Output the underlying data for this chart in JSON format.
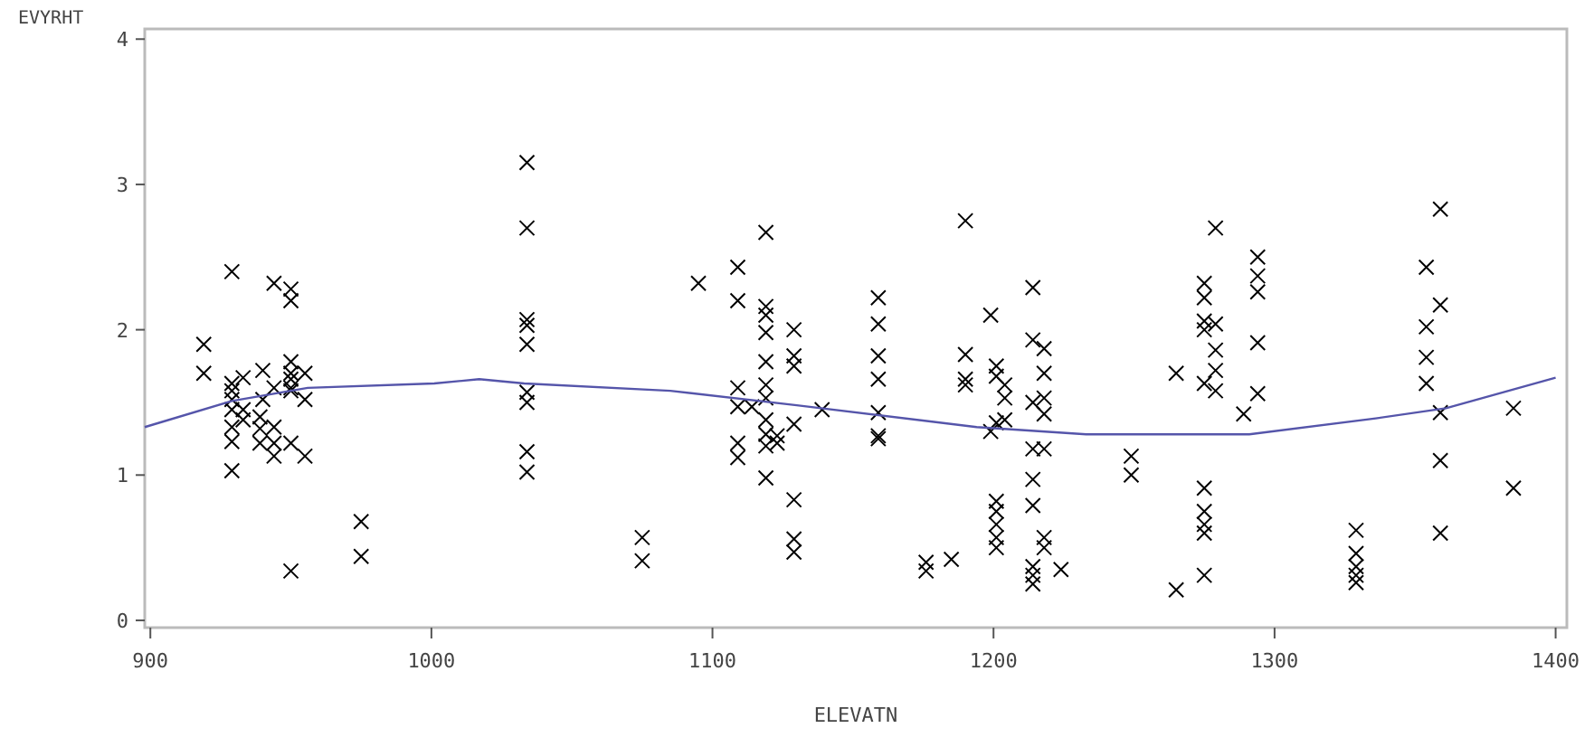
{
  "chart_data": {
    "type": "scatter",
    "xlabel": "ELEVATN",
    "ylabel": "EVYRHT",
    "xlim": [
      898,
      1404
    ],
    "ylim": [
      -0.05,
      4.07
    ],
    "xticks": [
      900,
      1000,
      1100,
      1200,
      1300,
      1400
    ],
    "yticks": [
      0,
      1,
      2,
      3,
      4
    ],
    "marker": "cross",
    "grid": false,
    "series": [
      {
        "color": "#000000",
        "x": [
          919,
          919,
          929,
          929,
          929,
          929,
          929,
          929,
          929,
          929,
          933,
          933,
          933,
          939,
          939,
          939,
          944,
          944,
          944,
          944,
          944,
          950,
          950,
          950,
          950,
          950,
          950,
          950,
          950,
          950,
          955,
          955,
          955,
          940,
          940,
          975,
          975,
          1034,
          1034,
          1034,
          1034,
          1034,
          1034,
          1034,
          1034,
          1034,
          1075,
          1075,
          1095,
          1109,
          1109,
          1109,
          1109,
          1109,
          1109,
          1114,
          1119,
          1119,
          1119,
          1119,
          1119,
          1119,
          1119,
          1119,
          1119,
          1119,
          1119,
          1123,
          1123,
          1129,
          1129,
          1129,
          1129,
          1129,
          1129,
          1129,
          1139,
          1159,
          1159,
          1159,
          1159,
          1159,
          1159,
          1159,
          1176,
          1176,
          1185,
          1190,
          1190,
          1190,
          1190,
          1199,
          1199,
          1201,
          1201,
          1201,
          1204,
          1204,
          1204,
          1201,
          1201,
          1201,
          1201,
          1201,
          1214,
          1214,
          1214,
          1214,
          1214,
          1214,
          1214,
          1214,
          1214,
          1218,
          1218,
          1218,
          1218,
          1218,
          1218,
          1218,
          1224,
          1249,
          1249,
          1265,
          1265,
          1275,
          1275,
          1275,
          1275,
          1275,
          1275,
          1275,
          1275,
          1275,
          1275,
          1279,
          1279,
          1279,
          1279,
          1279,
          1289,
          1294,
          1294,
          1294,
          1294,
          1294,
          1329,
          1329,
          1329,
          1329,
          1329,
          1354,
          1354,
          1354,
          1354,
          1359,
          1359,
          1359,
          1359,
          1359,
          1385,
          1385
        ],
        "values": [
          1.9,
          1.7,
          2.4,
          1.63,
          1.58,
          1.52,
          1.45,
          1.33,
          1.23,
          1.03,
          1.67,
          1.45,
          1.38,
          1.4,
          1.32,
          1.22,
          2.32,
          1.6,
          1.33,
          1.22,
          1.13,
          2.28,
          2.2,
          1.78,
          1.7,
          1.66,
          1.6,
          1.58,
          1.22,
          0.34,
          1.7,
          1.52,
          1.13,
          1.72,
          1.52,
          0.68,
          0.44,
          3.15,
          2.7,
          2.07,
          2.03,
          1.9,
          1.5,
          1.57,
          1.16,
          1.02,
          0.57,
          0.41,
          2.32,
          2.43,
          2.2,
          1.6,
          1.47,
          1.22,
          1.12,
          1.47,
          2.67,
          2.16,
          2.1,
          1.98,
          1.78,
          1.62,
          1.53,
          1.38,
          1.28,
          1.2,
          0.98,
          1.27,
          1.22,
          2.0,
          1.82,
          1.75,
          1.35,
          0.83,
          0.56,
          0.47,
          1.45,
          2.22,
          2.04,
          1.82,
          1.66,
          1.43,
          1.27,
          1.25,
          0.4,
          0.34,
          0.42,
          2.75,
          1.83,
          1.66,
          1.62,
          2.1,
          1.3,
          1.75,
          1.68,
          1.36,
          1.62,
          1.53,
          1.38,
          0.82,
          0.75,
          0.66,
          0.57,
          0.5,
          2.29,
          1.93,
          1.5,
          1.18,
          0.97,
          0.79,
          0.37,
          0.31,
          0.25,
          1.87,
          1.7,
          1.53,
          1.42,
          1.18,
          0.57,
          0.5,
          0.35,
          1.13,
          1.0,
          1.7,
          0.21,
          2.32,
          2.22,
          2.06,
          2.0,
          1.63,
          0.91,
          0.75,
          0.66,
          0.6,
          0.31,
          2.7,
          2.04,
          1.86,
          1.72,
          1.58,
          1.42,
          2.5,
          2.37,
          2.26,
          1.91,
          1.56,
          0.62,
          0.46,
          0.37,
          0.31,
          0.26,
          2.43,
          2.02,
          1.81,
          1.63,
          2.83,
          2.17,
          1.43,
          1.1,
          0.6,
          1.46,
          0.91
        ]
      },
      {
        "type": "line",
        "color": "#5555aa",
        "marker": "none",
        "x": [
          898,
          929,
          956,
          1001,
          1017,
          1033,
          1085,
          1130,
          1194,
          1233,
          1291,
          1336,
          1361,
          1400
        ],
        "values": [
          1.33,
          1.51,
          1.6,
          1.63,
          1.66,
          1.63,
          1.58,
          1.48,
          1.33,
          1.28,
          1.28,
          1.39,
          1.46,
          1.67
        ]
      }
    ]
  }
}
